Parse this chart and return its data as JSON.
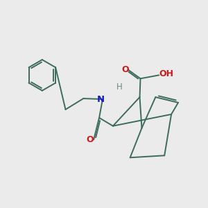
{
  "background_color": "#ebebeb",
  "bond_color": "#3d6b5a",
  "n_color": "#1a1acc",
  "o_color": "#cc1a1a",
  "h_color": "#6a8a80",
  "line_width": 1.4,
  "figsize": [
    3.0,
    3.0
  ],
  "dpi": 100,
  "xlim": [
    0,
    10
  ],
  "ylim": [
    0,
    10
  ]
}
